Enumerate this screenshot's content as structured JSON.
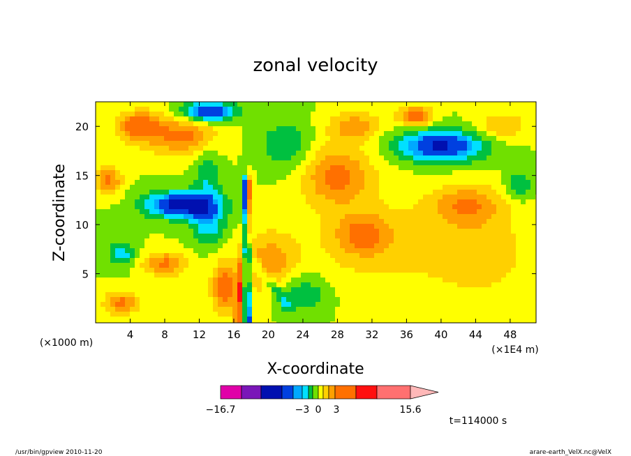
{
  "chart_data": {
    "type": "heatmap",
    "title": "zonal velocity",
    "xlabel": "X-coordinate",
    "ylabel": "Z-coordinate",
    "x_unit_left": "(×1000 m)",
    "x_unit_right": "(×1E4 m)",
    "x_ticks": [
      "4",
      "8",
      "12",
      "16",
      "20",
      "24",
      "28",
      "32",
      "36",
      "40",
      "44",
      "48"
    ],
    "y_ticks": [
      "5",
      "10",
      "15",
      "20"
    ],
    "x_tick_values": [
      4,
      8,
      12,
      16,
      20,
      24,
      28,
      32,
      36,
      40,
      44,
      48
    ],
    "y_tick_values": [
      5,
      10,
      15,
      20
    ],
    "xlim": [
      0,
      51
    ],
    "ylim": [
      0,
      22.5
    ],
    "colorbar": {
      "labels": [
        "−16.7",
        "−3",
        "0",
        "3",
        "15.6"
      ],
      "label_values": [
        -16.7,
        -3,
        0,
        3,
        15.6
      ],
      "colors": [
        "#e000a8",
        "#7a16b8",
        "#0010b0",
        "#0040e0",
        "#00a8ff",
        "#00e0ff",
        "#00c040",
        "#70e000",
        "#ffff00",
        "#ffd000",
        "#ffa000",
        "#ff7000",
        "#ff1010",
        "#ff7070",
        "#ffb8b8"
      ]
    },
    "time_label": "t=114000 s",
    "features": [
      {
        "type": "blob",
        "x": 10,
        "z": 12,
        "sx": 4.2,
        "sz": 1.3,
        "u": -9
      },
      {
        "type": "blob",
        "x": 13,
        "z": 10,
        "sx": 2,
        "sz": 2,
        "u": -4
      },
      {
        "type": "blob",
        "x": 10,
        "z": 19,
        "sx": 4,
        "sz": 2,
        "u": 5
      },
      {
        "type": "blob",
        "x": 5,
        "z": 20,
        "sx": 2.5,
        "sz": 1.5,
        "u": 6
      },
      {
        "type": "blob",
        "x": 13,
        "z": 21.5,
        "sx": 3,
        "sz": 1,
        "u": -8
      },
      {
        "type": "blob",
        "x": 40,
        "z": 18,
        "sx": 5,
        "sz": 1.6,
        "u": -8
      },
      {
        "type": "blob",
        "x": 1.5,
        "z": 14.5,
        "sx": 1.5,
        "sz": 1.5,
        "u": 5
      },
      {
        "type": "blob",
        "x": 3,
        "z": 7,
        "sx": 1.5,
        "sz": 1.2,
        "u": -4
      },
      {
        "type": "blob",
        "x": 8,
        "z": 6,
        "sx": 2.5,
        "sz": 1.2,
        "u": 5
      },
      {
        "type": "blob",
        "x": 3,
        "z": 2,
        "sx": 2,
        "sz": 1.2,
        "u": 5
      },
      {
        "type": "blob",
        "x": 15,
        "z": 3.5,
        "sx": 1.5,
        "sz": 2.5,
        "u": 6
      },
      {
        "type": "blob",
        "x": 28,
        "z": 15,
        "sx": 4,
        "sz": 3,
        "u": 5
      },
      {
        "type": "blob",
        "x": 33,
        "z": 8,
        "sx": 10,
        "sz": 5,
        "u": 2
      },
      {
        "type": "blob",
        "x": 45,
        "z": 7,
        "sx": 6,
        "sz": 5,
        "u": 2
      },
      {
        "type": "blob",
        "x": 24,
        "z": 3,
        "sx": 3,
        "sz": 2,
        "u": -3
      },
      {
        "type": "blob",
        "x": 20,
        "z": 6,
        "sx": 3,
        "sz": 3,
        "u": 4
      },
      {
        "type": "blob",
        "x": 22,
        "z": 18,
        "sx": 3,
        "sz": 2.5,
        "u": -3
      },
      {
        "type": "blob",
        "x": 30,
        "z": 20,
        "sx": 3,
        "sz": 1.5,
        "u": 4
      },
      {
        "type": "blob",
        "x": 37,
        "z": 21,
        "sx": 2,
        "sz": 1,
        "u": 6
      },
      {
        "type": "blob",
        "x": 49,
        "z": 14,
        "sx": 1.5,
        "sz": 1.5,
        "u": -3
      },
      {
        "type": "blob",
        "x": 31,
        "z": 9,
        "sx": 3,
        "sz": 2,
        "u": 4
      },
      {
        "type": "blob",
        "x": 43,
        "z": 12,
        "sx": 4,
        "sz": 2,
        "u": 4
      },
      {
        "type": "blob",
        "x": 13,
        "z": 15,
        "sx": 1.5,
        "sz": 3,
        "u": -3
      },
      {
        "type": "blob",
        "x": 47,
        "z": 20,
        "sx": 3,
        "sz": 1.5,
        "u": 3
      },
      {
        "type": "front",
        "x0": 16.5,
        "z0": 0,
        "x1": 17.8,
        "z1": 14,
        "w": 0.45,
        "u": 6
      },
      {
        "type": "front",
        "x0": 17.6,
        "z0": 0,
        "x1": 17.2,
        "z1": 14,
        "w": 0.35,
        "u": -9
      },
      {
        "type": "front",
        "x0": 17.5,
        "z0": 7,
        "x1": 22,
        "z1": 2,
        "w": 0.8,
        "u": -3
      }
    ]
  },
  "footer": {
    "left": "/usr/bin/gpview   2010-11-20",
    "right": "arare-earth_VelX.nc@VelX"
  }
}
